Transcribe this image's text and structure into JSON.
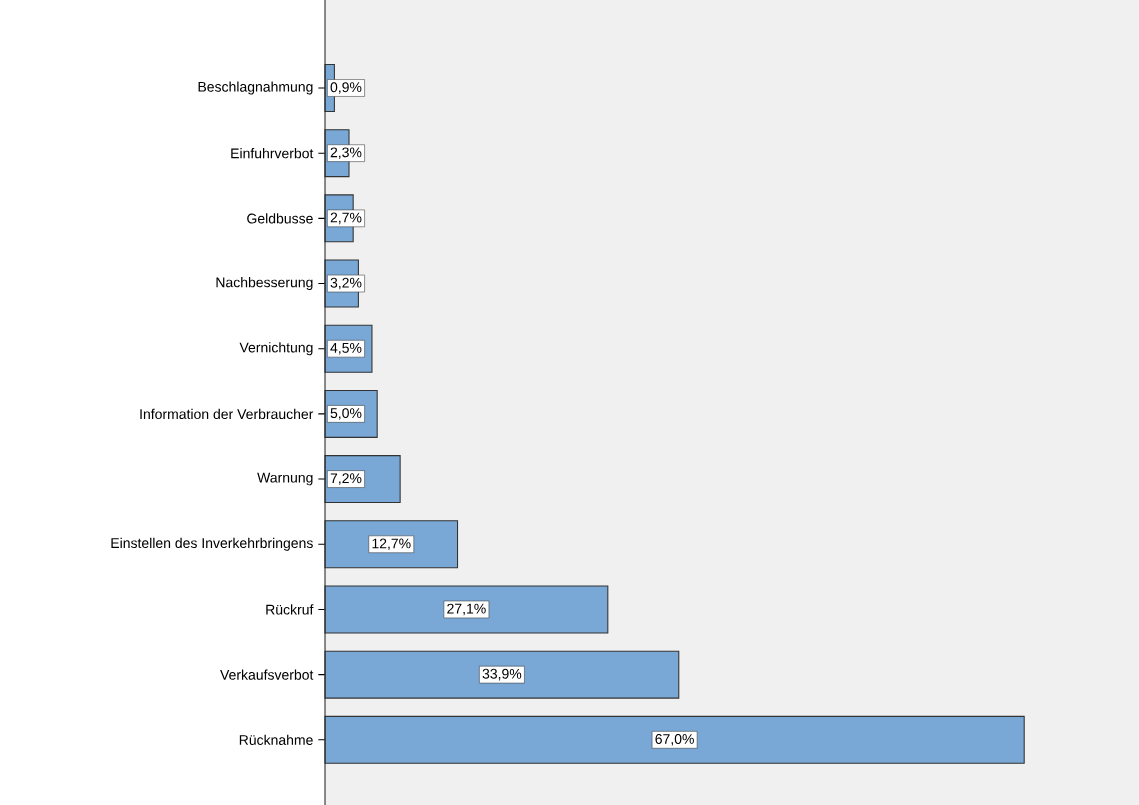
{
  "chart_data": {
    "type": "bar",
    "orientation": "horizontal",
    "categories": [
      "Beschlagnahmung",
      "Einfuhrverbot",
      "Geldbusse",
      "Nachbesserung",
      "Vernichtung",
      "Information der Verbraucher",
      "Warnung",
      "Einstellen des Inverkehrbringens",
      "Rückruf",
      "Verkaufsverbot",
      "Rücknahme"
    ],
    "values": [
      0.9,
      2.3,
      2.7,
      3.2,
      4.5,
      5.0,
      7.2,
      12.7,
      27.1,
      33.9,
      67.0
    ],
    "value_labels": [
      "0,9%",
      "2,3%",
      "2,7%",
      "3,2%",
      "4,5%",
      "5,0%",
      "7,2%",
      "12,7%",
      "27,1%",
      "33,9%",
      "67,0%"
    ],
    "color": "#79a8d6",
    "xlim": [
      0,
      78
    ],
    "tick_labels": "y"
  }
}
